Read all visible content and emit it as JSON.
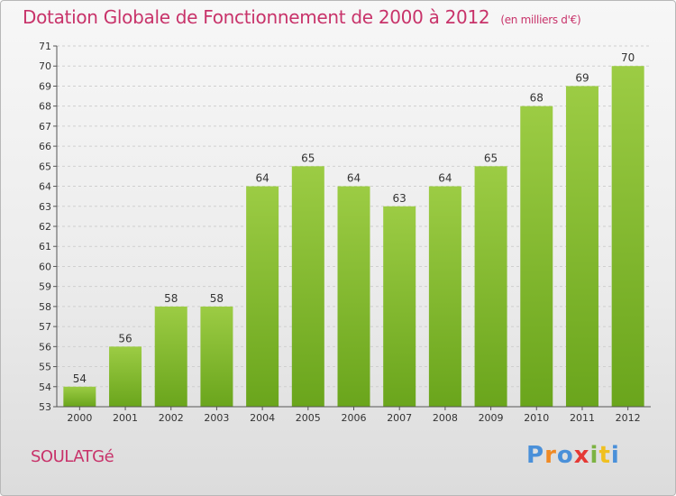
{
  "title": "Dotation Globale de Fonctionnement de 2000 à 2012",
  "subtitle": "(en milliers d'€)",
  "city": "SOULATGé",
  "logo": {
    "letters": [
      "P",
      "r",
      "o",
      "x",
      "i",
      "t",
      "i"
    ],
    "colors": [
      "#4a90d9",
      "#f08a24",
      "#4a90d9",
      "#e53935",
      "#7cb342",
      "#f0c020",
      "#4a90d9"
    ]
  },
  "chart_data": {
    "type": "bar",
    "title": "Dotation Globale de Fonctionnement de 2000 à 2012",
    "subtitle": "(en milliers d'€)",
    "categories": [
      "2000",
      "2001",
      "2002",
      "2003",
      "2004",
      "2005",
      "2006",
      "2007",
      "2008",
      "2009",
      "2010",
      "2011",
      "2012"
    ],
    "values": [
      54,
      56,
      58,
      58,
      64,
      65,
      64,
      63,
      64,
      65,
      68,
      69,
      70
    ],
    "ylim": [
      53,
      71
    ],
    "yticks": [
      53,
      54,
      55,
      56,
      57,
      58,
      59,
      60,
      61,
      62,
      63,
      64,
      65,
      66,
      67,
      68,
      69,
      70,
      71
    ],
    "grid": true,
    "bar_color_top": "#9ccc44",
    "bar_color_bottom": "#6aa51c"
  }
}
